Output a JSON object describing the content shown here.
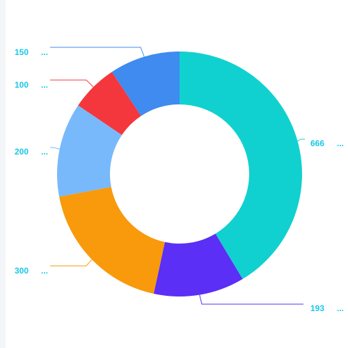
{
  "chart_data": {
    "type": "pie",
    "variant": "donut",
    "start": "top, clockwise",
    "label_color": "#19c8e6",
    "slices": [
      {
        "value": 666,
        "label": "666",
        "suffix": "...",
        "color": "#10d1cf"
      },
      {
        "value": 193,
        "label": "193",
        "suffix": "...",
        "color": "#5b2ff5"
      },
      {
        "value": 300,
        "label": "300",
        "suffix": "...",
        "color": "#f89a0b"
      },
      {
        "value": 200,
        "label": "200",
        "suffix": "...",
        "color": "#78b9fb"
      },
      {
        "value": 100,
        "label": "100",
        "suffix": "...",
        "color": "#f4373d"
      },
      {
        "value": 150,
        "label": "150",
        "suffix": "...",
        "color": "#3f8bef"
      }
    ]
  }
}
